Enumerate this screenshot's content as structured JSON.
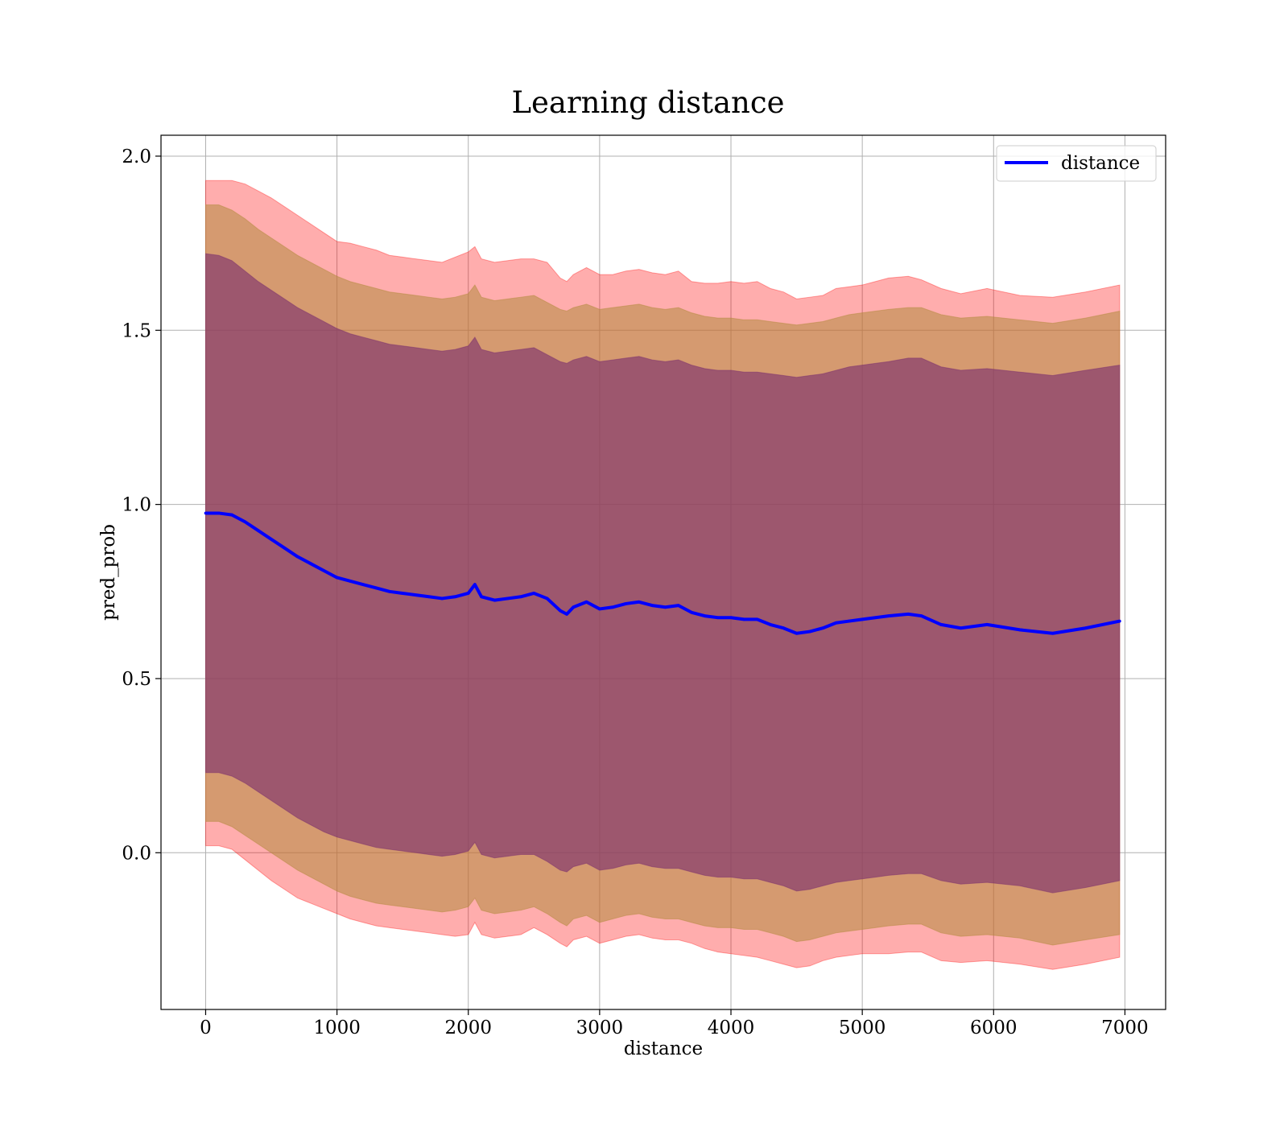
{
  "chart_data": {
    "type": "line",
    "title": "Learning distance",
    "xlabel": "distance",
    "ylabel": "pred_prob",
    "xlim": [
      -340,
      7310
    ],
    "ylim": [
      -0.45,
      2.06
    ],
    "xticks": [
      0,
      1000,
      2000,
      3000,
      4000,
      5000,
      6000,
      7000
    ],
    "xtick_labels": [
      "0",
      "1000",
      "2000",
      "3000",
      "4000",
      "5000",
      "6000",
      "7000"
    ],
    "yticks": [
      0.0,
      0.5,
      1.0,
      1.5,
      2.0
    ],
    "ytick_labels": [
      "0.0",
      "0.5",
      "1.0",
      "1.5",
      "2.0"
    ],
    "grid": true,
    "legend": {
      "position": "top-right",
      "entries": [
        "distance"
      ]
    },
    "x": [
      0,
      100,
      200,
      300,
      400,
      500,
      600,
      700,
      800,
      900,
      1000,
      1100,
      1200,
      1300,
      1400,
      1500,
      1600,
      1700,
      1800,
      1900,
      2000,
      2050,
      2100,
      2200,
      2300,
      2400,
      2500,
      2600,
      2700,
      2750,
      2800,
      2900,
      3000,
      3100,
      3200,
      3300,
      3400,
      3500,
      3600,
      3700,
      3800,
      3900,
      4000,
      4100,
      4200,
      4300,
      4400,
      4500,
      4600,
      4700,
      4800,
      4900,
      5000,
      5100,
      5200,
      5350,
      5450,
      5600,
      5750,
      5950,
      6200,
      6450,
      6700,
      6960
    ],
    "series": [
      {
        "name": "distance",
        "color": "#0000ff",
        "values": [
          0.975,
          0.975,
          0.97,
          0.95,
          0.925,
          0.9,
          0.875,
          0.85,
          0.83,
          0.81,
          0.79,
          0.78,
          0.77,
          0.76,
          0.75,
          0.745,
          0.74,
          0.735,
          0.73,
          0.735,
          0.745,
          0.77,
          0.735,
          0.725,
          0.73,
          0.735,
          0.745,
          0.73,
          0.695,
          0.685,
          0.705,
          0.72,
          0.7,
          0.705,
          0.715,
          0.72,
          0.71,
          0.705,
          0.71,
          0.69,
          0.68,
          0.675,
          0.675,
          0.67,
          0.67,
          0.655,
          0.645,
          0.63,
          0.635,
          0.645,
          0.66,
          0.665,
          0.67,
          0.675,
          0.68,
          0.685,
          0.68,
          0.655,
          0.645,
          0.655,
          0.64,
          0.63,
          0.645,
          0.665
        ],
        "band_3sd": [
          0.02,
          0.02,
          0.01,
          -0.02,
          -0.05,
          -0.08,
          -0.105,
          -0.13,
          -0.145,
          -0.16,
          -0.175,
          -0.19,
          -0.2,
          -0.21,
          -0.215,
          -0.22,
          -0.225,
          -0.23,
          -0.235,
          -0.24,
          -0.235,
          -0.2,
          -0.235,
          -0.245,
          -0.24,
          -0.235,
          -0.215,
          -0.235,
          -0.26,
          -0.27,
          -0.25,
          -0.24,
          -0.26,
          -0.25,
          -0.24,
          -0.235,
          -0.245,
          -0.25,
          -0.25,
          -0.26,
          -0.275,
          -0.285,
          -0.29,
          -0.295,
          -0.3,
          -0.31,
          -0.32,
          -0.33,
          -0.325,
          -0.31,
          -0.3,
          -0.295,
          -0.29,
          -0.29,
          -0.29,
          -0.285,
          -0.285,
          -0.31,
          -0.315,
          -0.31,
          -0.32,
          -0.335,
          -0.32,
          -0.3
        ],
        "band_2sd_upper": [
          1.86,
          1.86,
          1.845,
          1.82,
          1.79,
          1.765,
          1.74,
          1.715,
          1.695,
          1.675,
          1.655,
          1.64,
          1.63,
          1.62,
          1.61,
          1.605,
          1.6,
          1.595,
          1.59,
          1.595,
          1.605,
          1.63,
          1.595,
          1.585,
          1.59,
          1.595,
          1.6,
          1.58,
          1.56,
          1.555,
          1.565,
          1.575,
          1.56,
          1.565,
          1.57,
          1.575,
          1.565,
          1.56,
          1.565,
          1.55,
          1.54,
          1.535,
          1.535,
          1.53,
          1.53,
          1.525,
          1.52,
          1.515,
          1.52,
          1.525,
          1.535,
          1.545,
          1.55,
          1.555,
          1.56,
          1.565,
          1.565,
          1.545,
          1.535,
          1.54,
          1.53,
          1.52,
          1.535,
          1.555
        ],
        "band_2sd_lower": [
          0.09,
          0.09,
          0.075,
          0.05,
          0.025,
          0.0,
          -0.025,
          -0.05,
          -0.07,
          -0.09,
          -0.11,
          -0.125,
          -0.135,
          -0.145,
          -0.15,
          -0.155,
          -0.16,
          -0.165,
          -0.17,
          -0.165,
          -0.155,
          -0.13,
          -0.165,
          -0.175,
          -0.17,
          -0.165,
          -0.155,
          -0.175,
          -0.2,
          -0.21,
          -0.19,
          -0.18,
          -0.2,
          -0.19,
          -0.18,
          -0.175,
          -0.185,
          -0.19,
          -0.19,
          -0.2,
          -0.21,
          -0.215,
          -0.215,
          -0.22,
          -0.22,
          -0.23,
          -0.24,
          -0.255,
          -0.25,
          -0.24,
          -0.23,
          -0.225,
          -0.22,
          -0.215,
          -0.21,
          -0.205,
          -0.205,
          -0.23,
          -0.24,
          -0.235,
          -0.245,
          -0.265,
          -0.25,
          -0.235
        ],
        "band_1sd_upper": [
          1.72,
          1.715,
          1.7,
          1.67,
          1.64,
          1.615,
          1.59,
          1.565,
          1.545,
          1.525,
          1.505,
          1.49,
          1.48,
          1.47,
          1.46,
          1.455,
          1.45,
          1.445,
          1.44,
          1.445,
          1.455,
          1.48,
          1.445,
          1.435,
          1.44,
          1.445,
          1.45,
          1.43,
          1.41,
          1.405,
          1.415,
          1.425,
          1.41,
          1.415,
          1.42,
          1.425,
          1.415,
          1.41,
          1.415,
          1.4,
          1.39,
          1.385,
          1.385,
          1.38,
          1.38,
          1.375,
          1.37,
          1.365,
          1.37,
          1.375,
          1.385,
          1.395,
          1.4,
          1.405,
          1.41,
          1.42,
          1.42,
          1.395,
          1.385,
          1.39,
          1.38,
          1.37,
          1.385,
          1.4
        ],
        "band_1sd_lower": [
          0.23,
          0.23,
          0.22,
          0.2,
          0.175,
          0.15,
          0.125,
          0.1,
          0.08,
          0.06,
          0.045,
          0.035,
          0.025,
          0.015,
          0.01,
          0.005,
          0.0,
          -0.005,
          -0.01,
          -0.005,
          0.005,
          0.03,
          -0.005,
          -0.015,
          -0.01,
          -0.005,
          -0.005,
          -0.025,
          -0.05,
          -0.055,
          -0.04,
          -0.03,
          -0.05,
          -0.045,
          -0.035,
          -0.03,
          -0.04,
          -0.045,
          -0.045,
          -0.055,
          -0.065,
          -0.07,
          -0.07,
          -0.075,
          -0.075,
          -0.085,
          -0.095,
          -0.11,
          -0.105,
          -0.095,
          -0.085,
          -0.08,
          -0.075,
          -0.07,
          -0.065,
          -0.06,
          -0.06,
          -0.08,
          -0.09,
          -0.085,
          -0.095,
          -0.115,
          -0.1,
          -0.08
        ]
      }
    ],
    "band_colors": {
      "band_3sd": "#ff0000",
      "band_2sd": "#b38a3e",
      "band_1sd": "#7a2e6e"
    }
  }
}
